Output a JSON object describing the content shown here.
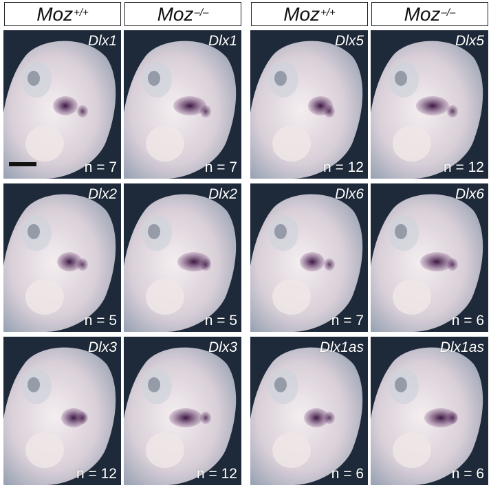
{
  "headers": [
    {
      "base": "Moz",
      "sup": "+/+"
    },
    {
      "base": "Moz",
      "sup": "–/–"
    },
    {
      "base": "Moz",
      "sup": "+/+"
    },
    {
      "base": "Moz",
      "sup": "–/–"
    }
  ],
  "panels": [
    {
      "gene": "Dlx1",
      "n": "n = 7"
    },
    {
      "gene": "Dlx1",
      "n": "n = 7"
    },
    {
      "gene": "Dlx5",
      "n": "n = 12"
    },
    {
      "gene": "Dlx5",
      "n": "n = 12"
    },
    {
      "gene": "Dlx2",
      "n": "n = 5"
    },
    {
      "gene": "Dlx2",
      "n": "n = 5"
    },
    {
      "gene": "Dlx6",
      "n": "n = 7"
    },
    {
      "gene": "Dlx6",
      "n": "n = 6"
    },
    {
      "gene": "Dlx3",
      "n": "n = 12"
    },
    {
      "gene": "Dlx3",
      "n": "n = 12"
    },
    {
      "gene": "Dlx1as",
      "n": "n = 6"
    },
    {
      "gene": "Dlx1as",
      "n": "n = 6"
    }
  ],
  "colors": {
    "background_dark": "#1e2a3a",
    "tissue_light": "#e9e2e6",
    "stain_purple": "#3a1740"
  }
}
